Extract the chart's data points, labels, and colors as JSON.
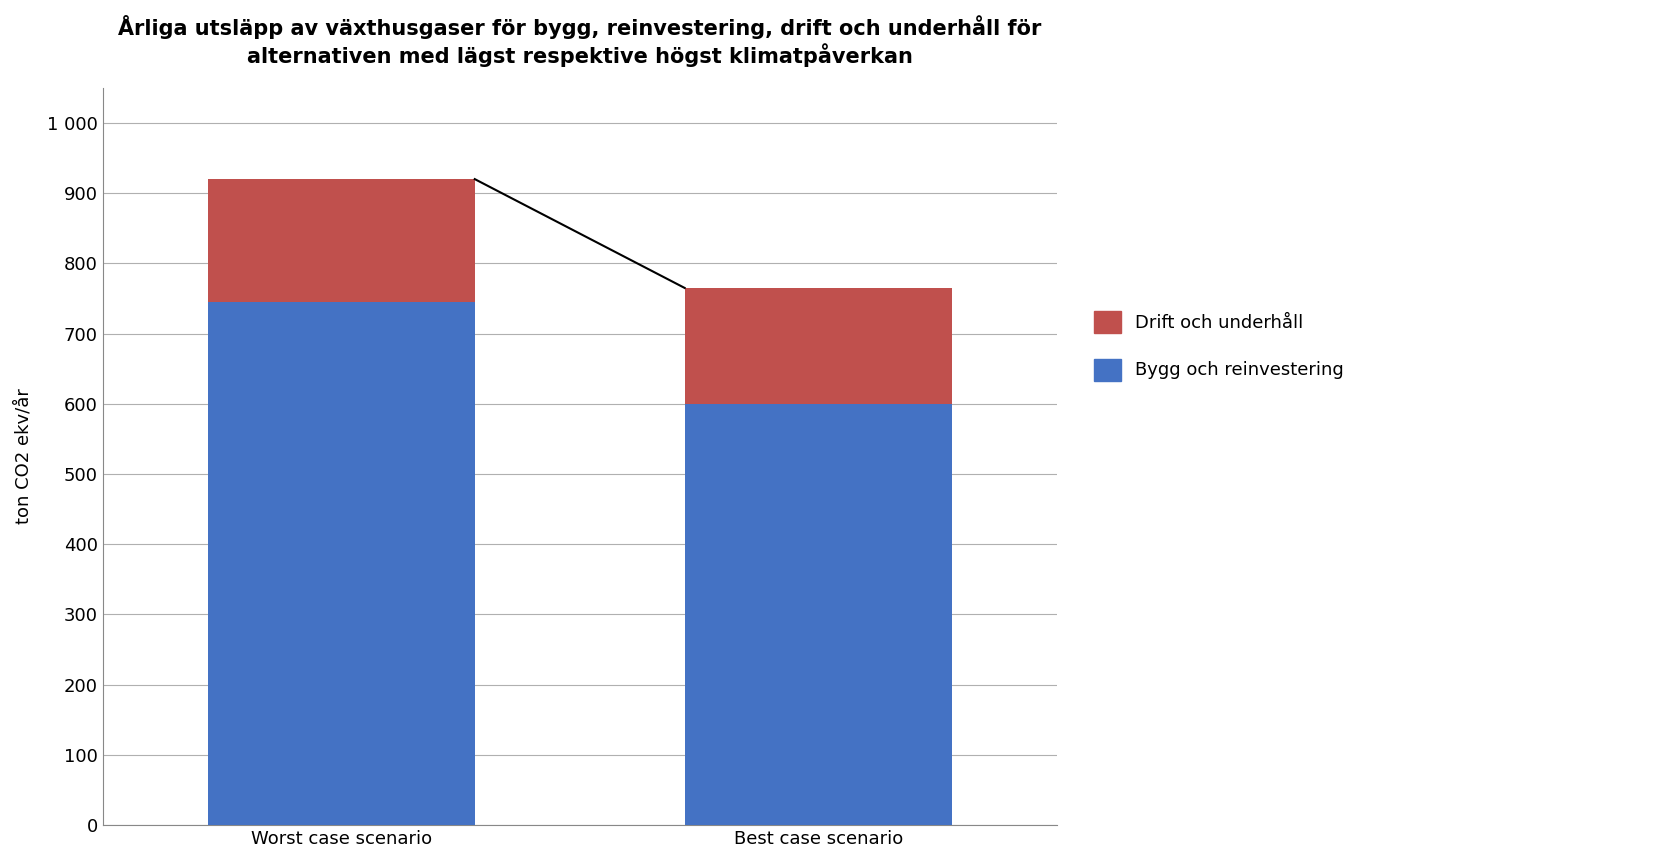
{
  "title_line1": "Årliga utsläpp av växthusgaser för bygg, reinvestering, drift och underhåll för",
  "title_line2": "alternativen med lägst respektive högst klimatpåverkan",
  "categories": [
    "Worst case scenario",
    "Best case scenario"
  ],
  "bygg_values": [
    745,
    600
  ],
  "drift_values": [
    175,
    165
  ],
  "bygg_color": "#4472C4",
  "drift_color": "#C0504D",
  "ylabel": "ton CO2 ekv/år",
  "ylim": [
    0,
    1050
  ],
  "yticks": [
    0,
    100,
    200,
    300,
    400,
    500,
    600,
    700,
    800,
    900,
    1000
  ],
  "ytick_labels": [
    "0",
    "100",
    "200",
    "300",
    "400",
    "500",
    "600",
    "700",
    "800",
    "900",
    "1 000"
  ],
  "legend_drift": "Drift och underhåll",
  "legend_bygg": "Bygg och reinvestering",
  "title_fontsize": 15,
  "background_color": "#ffffff",
  "grid_color": "#b0b0b0",
  "bar_width": 0.28,
  "bar_positions": [
    0.25,
    0.75
  ]
}
